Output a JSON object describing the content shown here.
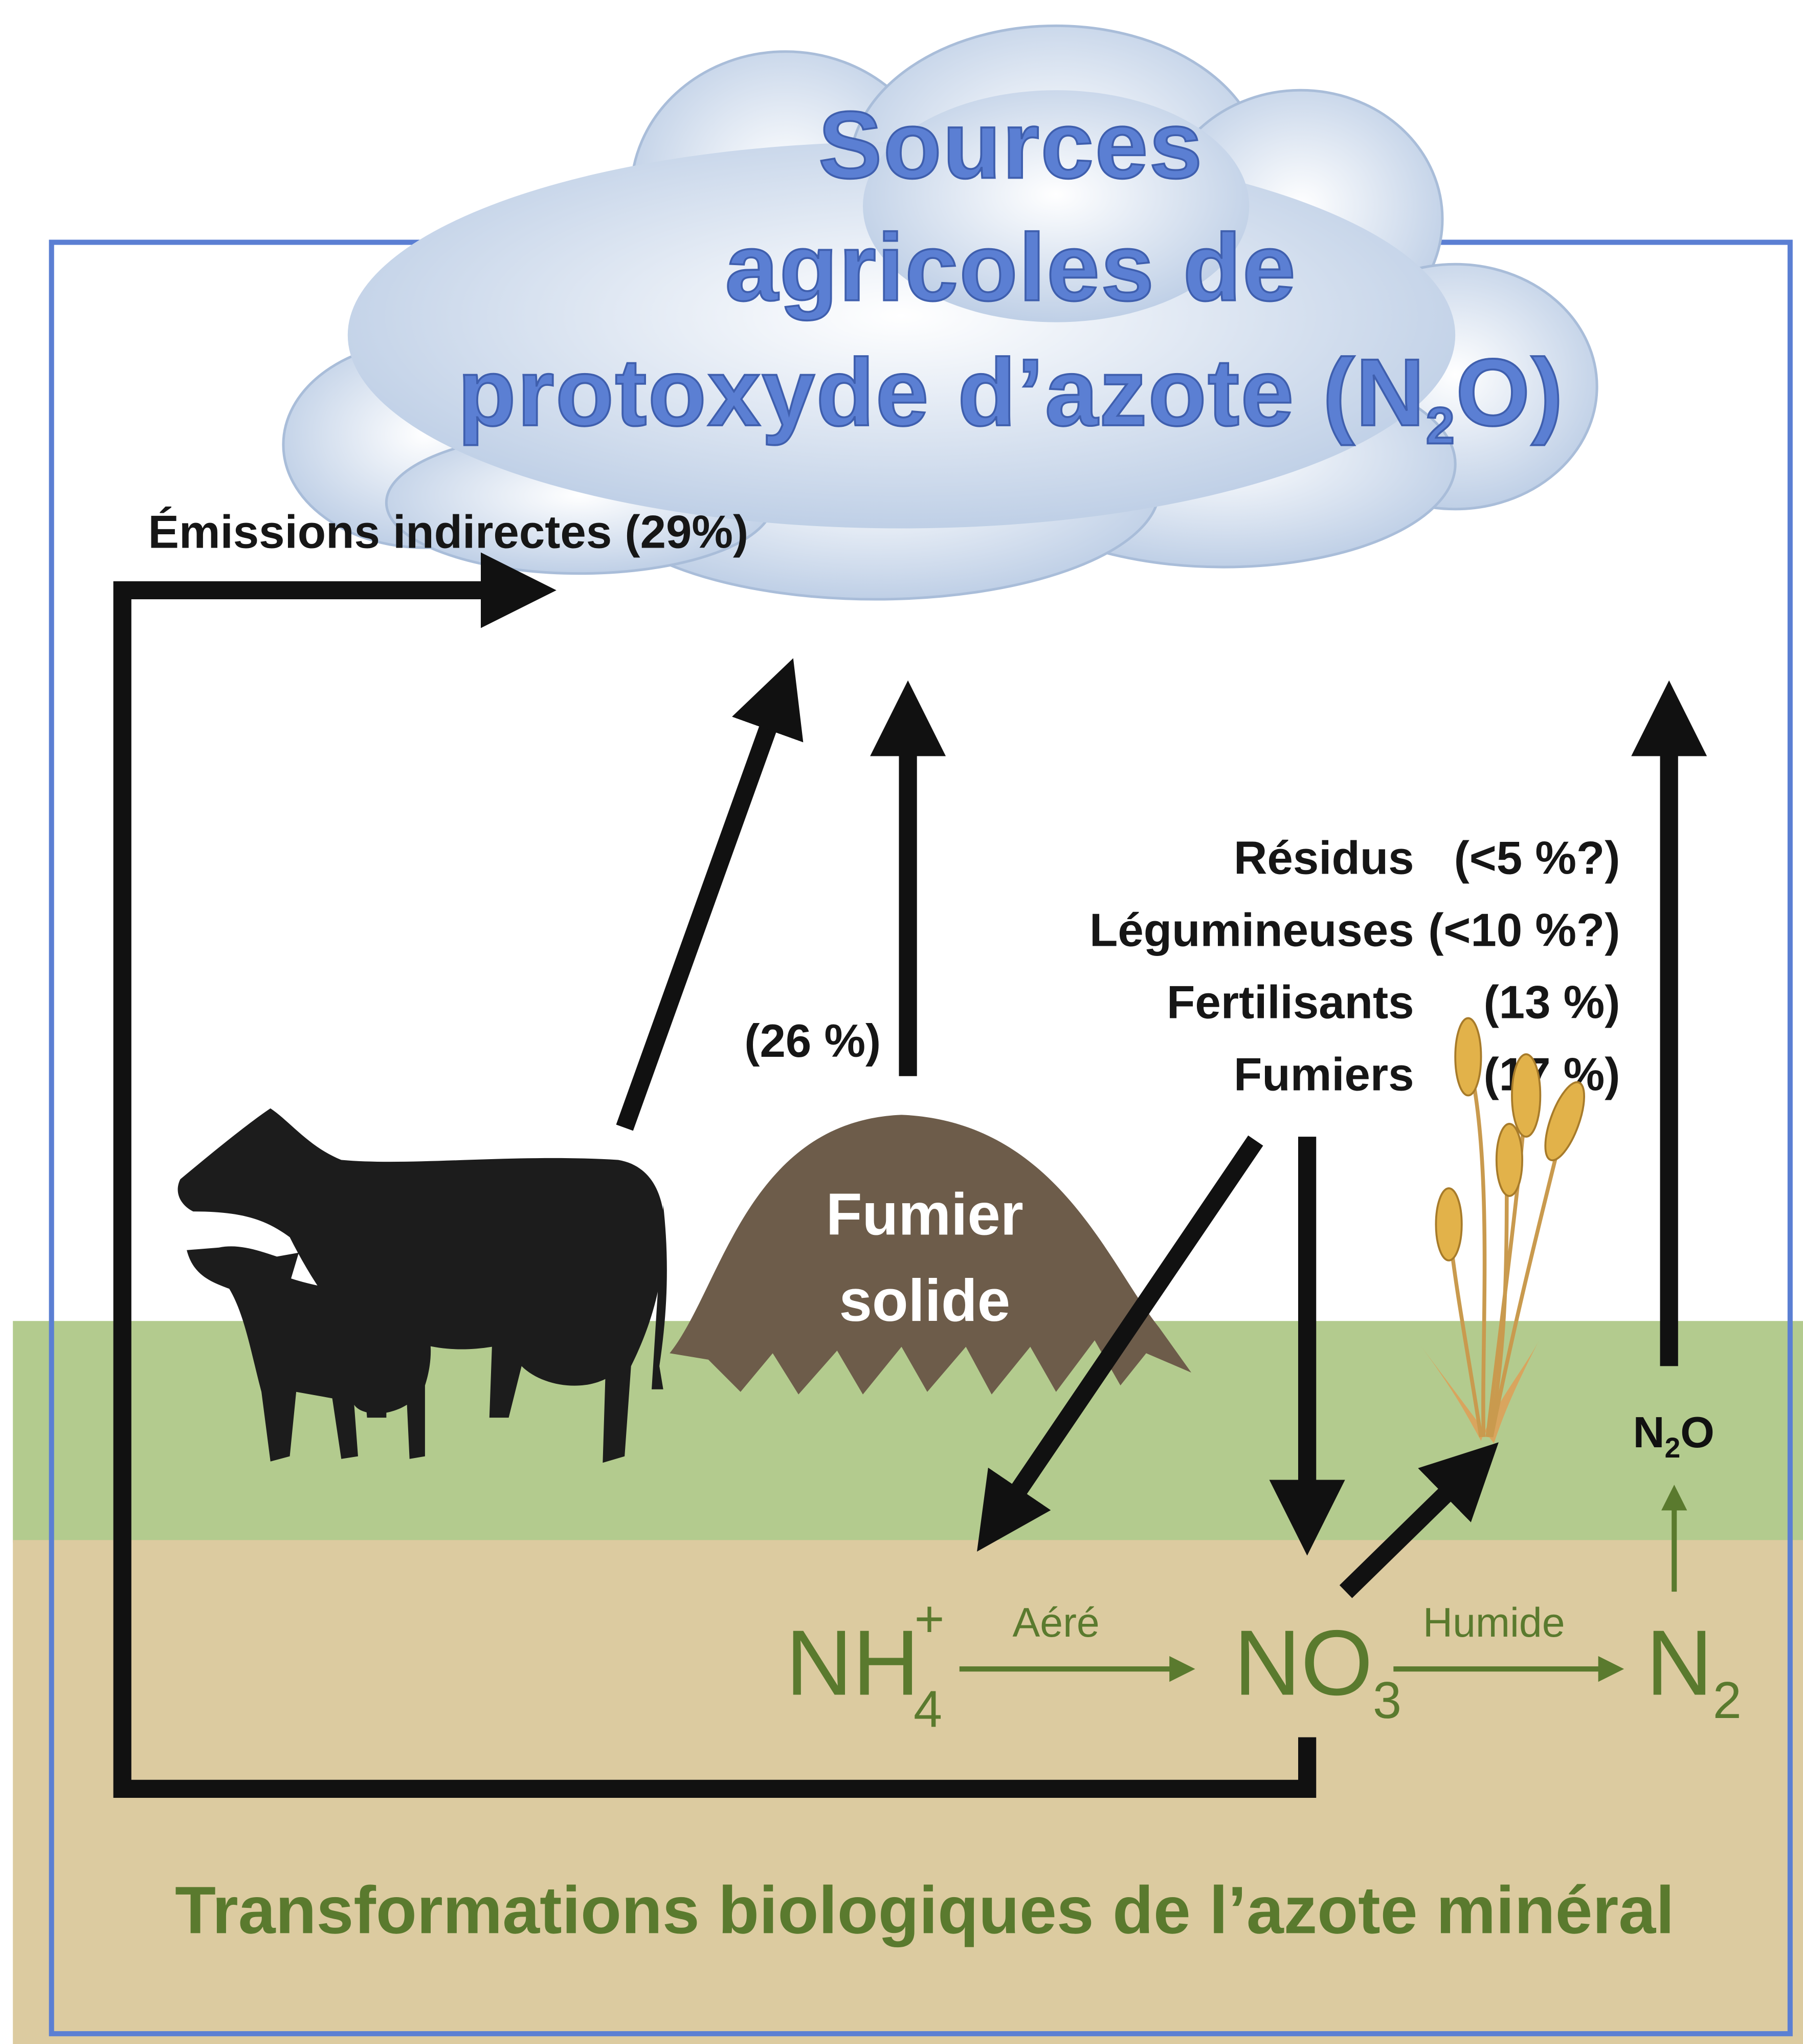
{
  "title": {
    "line1": "Sources",
    "line2": "agricoles de",
    "line3": {
      "before": "protoxyde d’azote (N",
      "sub": "2",
      "after": "O)"
    }
  },
  "emissions_label": "Émissions indirectes (29%)",
  "manure_share": "(26 %)",
  "manure_pile": [
    "Fumier",
    "solide"
  ],
  "sources": [
    {
      "label": "Résidus",
      "share": "(<5 %?)"
    },
    {
      "label": "Légumineuses",
      "share": "(<10 %?)"
    },
    {
      "label": "Fertilisants",
      "share": "(13 %)"
    },
    {
      "label": "Fumiers",
      "share": "(17 %)"
    }
  ],
  "species": {
    "ammonium": {
      "base": "NH",
      "sub": "4",
      "sup": "+"
    },
    "nitrate": {
      "base": "NO",
      "sub": "3"
    },
    "nitrogen": {
      "base": "N",
      "sub": "2"
    },
    "nitrous_oxide": {
      "base": "N",
      "sub": "2",
      "after": "O"
    }
  },
  "processes": {
    "aerated": "Aéré",
    "wet": "Humide"
  },
  "footer": "Transformations biologiques de l’azote minéral"
}
